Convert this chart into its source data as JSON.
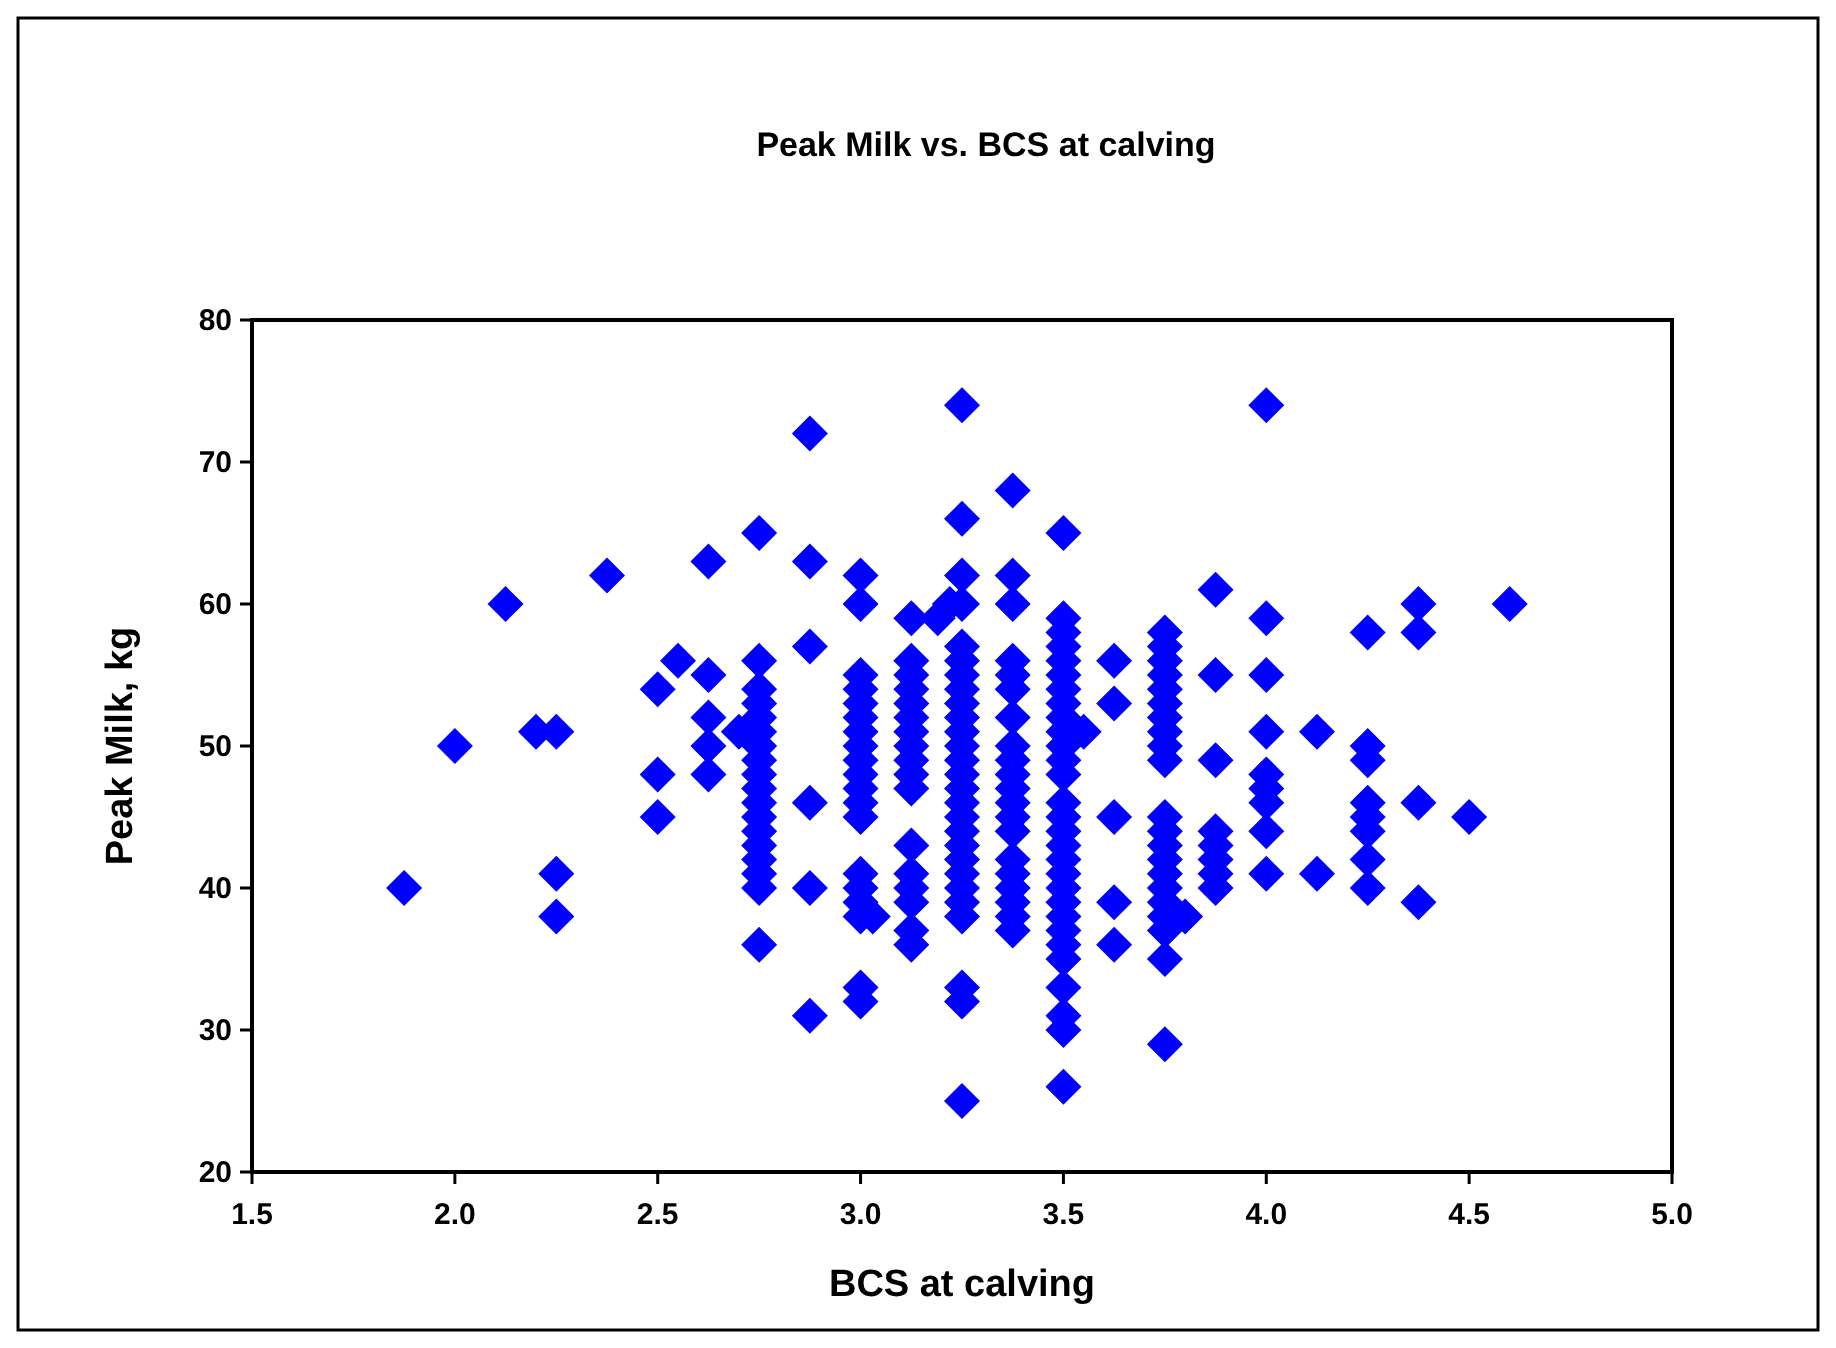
{
  "chart_data": {
    "type": "scatter",
    "title": "Peak Milk vs. BCS at calving",
    "xlabel": "BCS at calving",
    "ylabel": "Peak Milk, kg",
    "xlim": [
      1.5,
      5
    ],
    "xticks": [
      {
        "value": 1.5,
        "label": "1.5"
      },
      {
        "value": 2,
        "label": "2.0"
      },
      {
        "value": 2.5,
        "label": "2.5"
      },
      {
        "value": 3,
        "label": "3.0"
      },
      {
        "value": 3.5,
        "label": "3.5"
      },
      {
        "value": 4,
        "label": "4.0"
      },
      {
        "value": 4.5,
        "label": "4.5"
      },
      {
        "value": 5,
        "label": "5.0"
      }
    ],
    "ylim": [
      20,
      80
    ],
    "yticks": [
      20,
      30,
      40,
      50,
      60,
      70,
      80
    ],
    "grid": false,
    "marker": "diamond",
    "series": [
      {
        "color": "#0000ff",
        "x": [
          1.875,
          2,
          2.125,
          2.2,
          2.25,
          2.25,
          2.25,
          2.375,
          2.5,
          2.5,
          2.5,
          2.55,
          2.625,
          2.625,
          2.625,
          2.625,
          2.625,
          2.7,
          2.75,
          2.75,
          2.75,
          2.75,
          2.75,
          2.75,
          2.75,
          2.75,
          2.75,
          2.75,
          2.75,
          2.75,
          2.75,
          2.75,
          2.75,
          2.75,
          2.75,
          2.75,
          2.875,
          2.875,
          2.875,
          2.875,
          2.875,
          2.875,
          3,
          3,
          3,
          3,
          3,
          3,
          3,
          3,
          3,
          3,
          3,
          3,
          3,
          3,
          3,
          3,
          3,
          3,
          3,
          3.03,
          3.125,
          3.125,
          3.125,
          3.125,
          3.125,
          3.125,
          3.125,
          3.125,
          3.125,
          3.125,
          3.125,
          3.125,
          3.125,
          3.125,
          3.125,
          3.125,
          3.125,
          3.19,
          3.22,
          3.25,
          3.25,
          3.25,
          3.25,
          3.25,
          3.25,
          3.25,
          3.25,
          3.25,
          3.25,
          3.25,
          3.25,
          3.25,
          3.25,
          3.25,
          3.25,
          3.25,
          3.25,
          3.25,
          3.25,
          3.25,
          3.25,
          3.25,
          3.25,
          3.25,
          3.25,
          3.25,
          3.375,
          3.375,
          3.375,
          3.375,
          3.375,
          3.375,
          3.375,
          3.375,
          3.375,
          3.375,
          3.375,
          3.375,
          3.375,
          3.375,
          3.375,
          3.375,
          3.375,
          3.375,
          3.375,
          3.375,
          3.5,
          3.5,
          3.5,
          3.5,
          3.5,
          3.5,
          3.5,
          3.5,
          3.5,
          3.5,
          3.5,
          3.5,
          3.5,
          3.5,
          3.5,
          3.5,
          3.5,
          3.5,
          3.5,
          3.5,
          3.5,
          3.5,
          3.5,
          3.5,
          3.5,
          3.5,
          3.5,
          3.5,
          3.5,
          3.55,
          3.625,
          3.625,
          3.625,
          3.625,
          3.625,
          3.75,
          3.75,
          3.75,
          3.75,
          3.75,
          3.75,
          3.75,
          3.75,
          3.75,
          3.75,
          3.75,
          3.75,
          3.75,
          3.75,
          3.75,
          3.75,
          3.75,
          3.75,
          3.75,
          3.75,
          3.75,
          3.8,
          3.875,
          3.875,
          3.875,
          3.875,
          3.875,
          3.875,
          3.875,
          3.875,
          4,
          4,
          4,
          4,
          4,
          4,
          4,
          4,
          4,
          4.125,
          4.125,
          4.25,
          4.25,
          4.25,
          4.25,
          4.25,
          4.25,
          4.25,
          4.25,
          4.375,
          4.375,
          4.375,
          4.375,
          4.5,
          4.6
        ],
        "values": [
          40,
          50,
          60,
          51,
          51,
          41,
          38,
          62,
          54,
          48,
          45,
          56,
          63,
          55,
          52,
          50,
          48,
          51,
          65,
          56,
          54,
          53,
          52,
          51,
          50,
          49,
          48,
          47,
          46,
          45,
          44,
          43,
          42,
          41,
          40,
          36,
          72,
          63,
          57,
          46,
          40,
          31,
          62,
          60,
          55,
          54,
          53,
          52,
          51,
          50,
          49,
          48,
          47,
          46,
          45,
          41,
          40,
          39,
          38,
          33,
          32,
          38,
          59,
          56,
          55,
          54,
          53,
          52,
          51,
          50,
          49,
          48,
          47,
          43,
          41,
          40,
          39,
          37,
          36,
          59,
          60,
          74,
          66,
          62,
          60,
          57,
          56,
          55,
          54,
          53,
          52,
          51,
          50,
          49,
          48,
          47,
          46,
          45,
          44,
          43,
          42,
          41,
          40,
          39,
          38,
          33,
          32,
          25,
          68,
          62,
          60,
          56,
          55,
          54,
          52,
          50,
          49,
          48,
          47,
          46,
          45,
          44,
          42,
          41,
          40,
          39,
          38,
          37,
          65,
          59,
          58,
          57,
          56,
          55,
          54,
          53,
          52,
          51,
          50,
          49,
          48,
          46,
          45,
          44,
          43,
          42,
          41,
          40,
          39,
          38,
          37,
          36,
          35,
          33,
          31,
          30,
          26,
          51,
          56,
          53,
          45,
          39,
          36,
          58,
          57,
          56,
          55,
          54,
          53,
          52,
          51,
          50,
          49,
          45,
          44,
          43,
          42,
          41,
          40,
          39,
          38,
          37,
          35,
          29,
          38,
          61,
          55,
          49,
          44,
          43,
          42,
          41,
          40,
          74,
          59,
          55,
          51,
          48,
          47,
          46,
          44,
          41,
          51,
          41,
          58,
          50,
          49,
          46,
          45,
          44,
          42,
          40,
          60,
          58,
          46,
          39,
          45,
          60
        ]
      }
    ]
  }
}
